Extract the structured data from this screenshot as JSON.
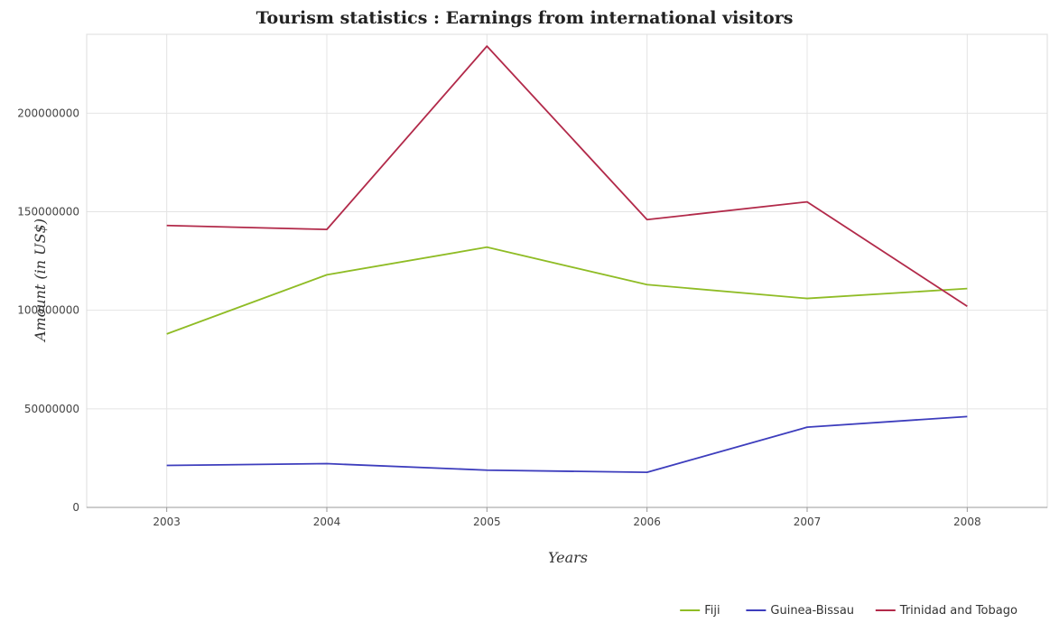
{
  "chart_data": {
    "type": "line",
    "title": "Tourism statistics : Earnings from international visitors",
    "xlabel": "Years",
    "ylabel": "Amount (in US$)",
    "categories": [
      "2003",
      "2004",
      "2005",
      "2006",
      "2007",
      "2008"
    ],
    "ylim": [
      0,
      240000000
    ],
    "yticks": [
      0,
      50000000,
      100000000,
      150000000,
      200000000
    ],
    "ytick_labels": [
      "0",
      "50000000",
      "100000000",
      "150000000",
      "200000000"
    ],
    "grid": true,
    "legend_position": "bottom-right",
    "series": [
      {
        "name": "Fiji",
        "color": "#8fbc25",
        "values": [
          88000000,
          118000000,
          132000000,
          113000000,
          106000000,
          111000000
        ]
      },
      {
        "name": "Guinea-Bissau",
        "color": "#3d3dbd",
        "values": [
          21300000,
          22200000,
          18900000,
          17800000,
          40700000,
          46100000
        ]
      },
      {
        "name": "Trinidad and Tobago",
        "color": "#b22a4a",
        "values": [
          143000000,
          141000000,
          234000000,
          146000000,
          155000000,
          102000000
        ]
      }
    ]
  }
}
